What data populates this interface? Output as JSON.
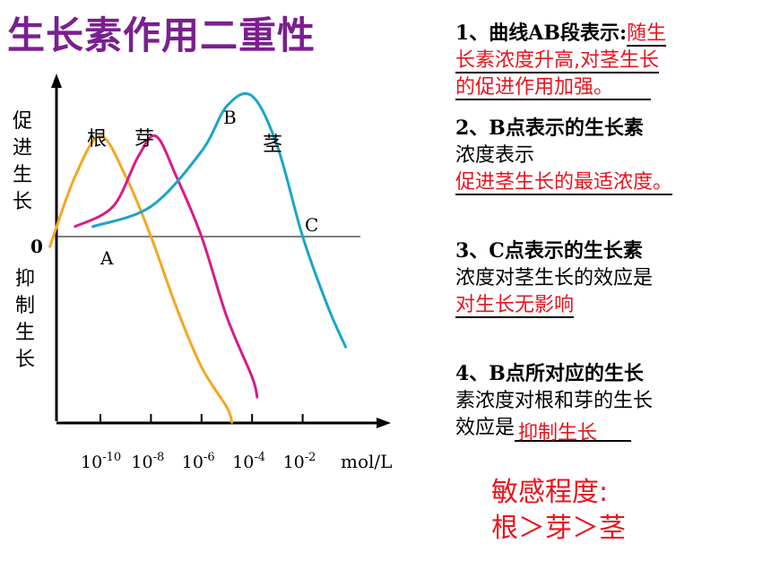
{
  "title": "生长素作用二重性",
  "chart_data": {
    "type": "line",
    "xlabel_unit": "mol/L",
    "x_ticks": [
      "10-10",
      "10-8",
      "10-6",
      "10-4",
      "10-2"
    ],
    "y_top_label": "促进生长",
    "y_bottom_label": "抑制生长",
    "origin_label": "0",
    "point_labels": [
      "A",
      "B",
      "C"
    ],
    "series": [
      {
        "name": "根",
        "color": "#f5a623",
        "points": [
          [
            -12.0,
            -0.1
          ],
          [
            -11.0,
            0.6
          ],
          [
            -10.0,
            1.0
          ],
          [
            -9.0,
            0.6
          ],
          [
            -8.0,
            0.0
          ],
          [
            -7.0,
            -0.7
          ],
          [
            -6.0,
            -1.3
          ],
          [
            -5.0,
            -1.7
          ],
          [
            -4.8,
            -1.85
          ]
        ]
      },
      {
        "name": "芽",
        "color": "#d81b8c",
        "points": [
          [
            -11.0,
            0.1
          ],
          [
            -9.5,
            0.3
          ],
          [
            -8.5,
            0.8
          ],
          [
            -7.8,
            1.0
          ],
          [
            -7.0,
            0.6
          ],
          [
            -6.0,
            0.0
          ],
          [
            -5.0,
            -0.8
          ],
          [
            -4.0,
            -1.4
          ],
          [
            -3.8,
            -1.6
          ]
        ]
      },
      {
        "name": "茎",
        "color": "#1aa6c8",
        "points": [
          [
            -10.3,
            0.1
          ],
          [
            -8.0,
            0.3
          ],
          [
            -6.0,
            0.85
          ],
          [
            -5.0,
            1.3
          ],
          [
            -4.0,
            1.4
          ],
          [
            -3.0,
            0.9
          ],
          [
            -2.0,
            0.0
          ],
          [
            -1.0,
            -0.7
          ],
          [
            -0.3,
            -1.1
          ]
        ]
      }
    ]
  },
  "questions": {
    "q1_prefix": "1、曲线AB段表示:",
    "q1_answer_a": "随生",
    "q1_answer_b": "长素浓度升高,对茎生长",
    "q1_answer_c": "的促进作用加强。",
    "q2_line1": "2、B点表示的生长素",
    "q2_line2": "浓度表示",
    "q2_answer": "促进茎生长的最适浓度。",
    "q3_line1": "3、C点表示的生长素",
    "q3_line2": "浓度对茎生长的效应是",
    "q3_answer": "对生长无影响",
    "q4_line1": "4、B点所对应的生长",
    "q4_line2": "素浓度对根和芽的生长",
    "q4_line3": "效应是",
    "q4_answer": "抑制生长"
  },
  "sensitivity": {
    "line1": "敏感程度:",
    "line2": "根＞芽＞茎"
  }
}
